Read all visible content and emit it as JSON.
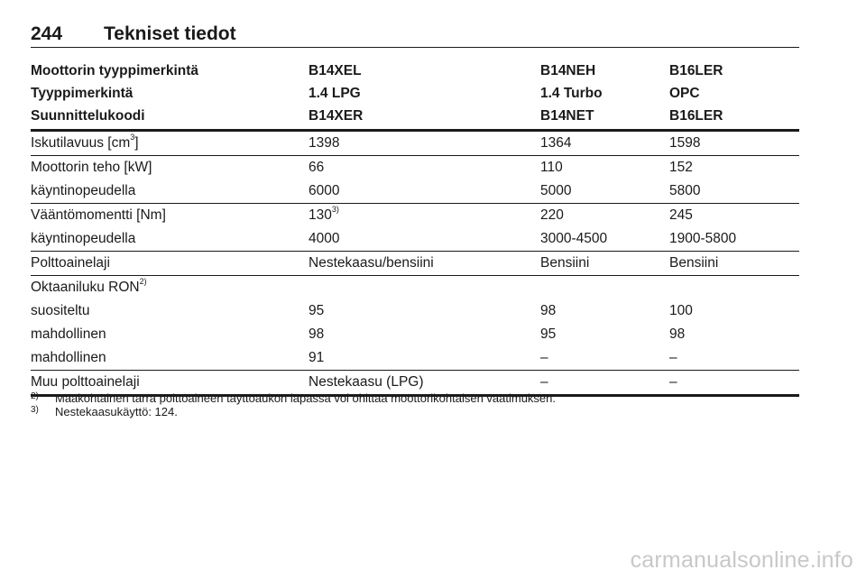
{
  "header": {
    "page_number": "244",
    "title": "Tekniset tiedot"
  },
  "table": {
    "header_rows": [
      [
        "Moottorin tyyppimerkintä",
        "B14XEL",
        "B14NEH",
        "B16LER"
      ],
      [
        "Tyyppimerkintä",
        "1.4 LPG",
        "1.4 Turbo",
        "OPC"
      ],
      [
        "Suunnittelukoodi",
        "B14XER",
        "B14NET",
        "B16LER"
      ]
    ],
    "displacement": {
      "label": "Iskutilavuus [cm",
      "label_sup": "3",
      "label_end": "]",
      "values": [
        "1398",
        "1364",
        "1598"
      ]
    },
    "power": {
      "label": "Moottorin teho [kW]",
      "values": [
        "66",
        "110",
        "152"
      ],
      "rpm_label": "käyntinopeudella",
      "rpm_values": [
        "6000",
        "5000",
        "5800"
      ]
    },
    "torque": {
      "label": "Vääntömomentti [Nm]",
      "value_1": "130",
      "value_1_sup": "3)",
      "value_2": "220",
      "value_3": "245",
      "rpm_label": "käyntinopeudella",
      "rpm_values": [
        "4000",
        "3000-4500",
        "1900-5800"
      ]
    },
    "fuel": {
      "label": "Polttoainelaji",
      "values": [
        "Nestekaasu/bensiini",
        "Bensiini",
        "Bensiini"
      ]
    },
    "octane": {
      "label": "Oktaaniluku RON",
      "label_sup": "2)",
      "rows": [
        {
          "label": "suositeltu",
          "values": [
            "95",
            "98",
            "100"
          ]
        },
        {
          "label": "mahdollinen",
          "values": [
            "98",
            "95",
            "98"
          ]
        },
        {
          "label": "mahdollinen",
          "values": [
            "91",
            "–",
            "–"
          ]
        }
      ]
    },
    "other_fuel": {
      "label": "Muu polttoainelaji",
      "values": [
        "Nestekaasu (LPG)",
        "–",
        "–"
      ]
    }
  },
  "footnotes": [
    {
      "mark": "2)",
      "text": "Maakohtainen tarra polttoaineen täyttöaukon läpässä voi ohittaa moottorikohtaisen vaatimuksen."
    },
    {
      "mark": "3)",
      "text": "Nestekaasukäyttö: 124."
    }
  ],
  "watermark": "carmanualsonline.info"
}
